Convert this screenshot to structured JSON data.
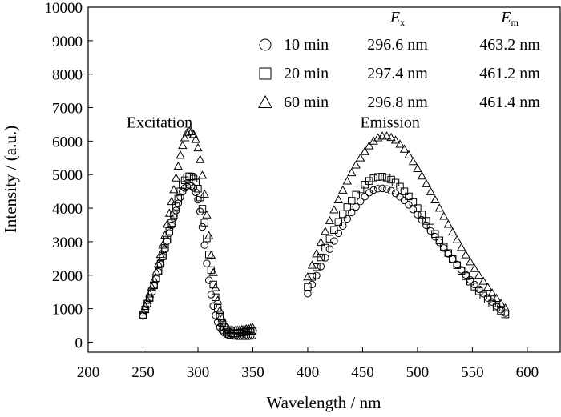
{
  "chart_data": {
    "type": "scatter",
    "xlabel": "Wavelength / nm",
    "ylabel": "Intensity / (a.u.)",
    "xlim": [
      200,
      630
    ],
    "ylim": [
      -300,
      10000
    ],
    "xticks": [
      200,
      250,
      300,
      350,
      400,
      450,
      500,
      550,
      600
    ],
    "yticks": [
      0,
      1000,
      2000,
      3000,
      4000,
      5000,
      6000,
      7000,
      8000,
      9000,
      10000
    ],
    "grid": false,
    "annotations": [
      {
        "text": "Excitation",
        "x": 265,
        "y": 6400
      },
      {
        "text": "Emission",
        "x": 475,
        "y": 6400
      }
    ],
    "legend": {
      "placement": "top-right",
      "header_ex": "E",
      "header_ex_sub": "x",
      "header_em": "E",
      "header_em_sub": "m",
      "entries": [
        {
          "marker": "circle",
          "label": "10 min",
          "ex": "296.6 nm",
          "em": "463.2 nm"
        },
        {
          "marker": "square",
          "label": "20 min",
          "ex": "297.4 nm",
          "em": "461.2 nm"
        },
        {
          "marker": "triangle",
          "label": "60 min",
          "ex": "296.8 nm",
          "em": "461.4 nm"
        }
      ]
    },
    "series": [
      {
        "marker": "circle",
        "excitation": {
          "x": [
            250,
            252,
            254,
            256,
            258,
            260,
            262,
            264,
            266,
            268,
            270,
            272,
            274,
            276,
            278,
            280,
            282,
            284,
            286,
            288,
            290,
            292,
            294,
            296,
            298,
            300,
            302,
            304,
            306,
            308,
            310,
            312,
            314,
            316,
            318,
            320,
            322,
            324,
            326,
            328,
            330,
            332,
            334,
            336,
            338,
            340,
            342,
            344,
            346,
            348,
            350
          ],
          "y": [
            780,
            950,
            1120,
            1300,
            1490,
            1690,
            1890,
            2100,
            2320,
            2550,
            2780,
            3020,
            3260,
            3490,
            3710,
            3930,
            4140,
            4330,
            4490,
            4600,
            4660,
            4680,
            4660,
            4600,
            4470,
            4250,
            3900,
            3440,
            2900,
            2350,
            1850,
            1420,
            1080,
            800,
            600,
            450,
            350,
            280,
            240,
            210,
            200,
            190,
            185,
            180,
            180,
            180,
            180,
            180,
            180,
            185,
            190
          ]
        },
        "emission": {
          "x": [
            400,
            404,
            408,
            412,
            416,
            420,
            424,
            428,
            432,
            436,
            440,
            444,
            448,
            452,
            456,
            460,
            464,
            468,
            472,
            476,
            480,
            484,
            488,
            492,
            496,
            500,
            504,
            508,
            512,
            516,
            520,
            524,
            528,
            532,
            536,
            540,
            544,
            548,
            552,
            556,
            560,
            564,
            568,
            572,
            576,
            580
          ],
          "y": [
            1450,
            1720,
            1990,
            2260,
            2520,
            2780,
            3020,
            3250,
            3470,
            3680,
            3870,
            4040,
            4200,
            4340,
            4460,
            4540,
            4580,
            4590,
            4570,
            4520,
            4440,
            4340,
            4230,
            4100,
            3960,
            3810,
            3650,
            3490,
            3320,
            3150,
            2980,
            2810,
            2640,
            2480,
            2320,
            2160,
            2010,
            1860,
            1720,
            1580,
            1450,
            1320,
            1200,
            1080,
            970,
            870
          ]
        }
      },
      {
        "marker": "square",
        "excitation": {
          "x": [
            250,
            252,
            254,
            256,
            258,
            260,
            262,
            264,
            266,
            268,
            270,
            272,
            274,
            276,
            278,
            280,
            282,
            284,
            286,
            288,
            290,
            292,
            294,
            296,
            298,
            300,
            302,
            304,
            306,
            308,
            310,
            312,
            314,
            316,
            318,
            320,
            322,
            324,
            326,
            328,
            330,
            332,
            334,
            336,
            338,
            340,
            342,
            344,
            346,
            348,
            350
          ],
          "y": [
            820,
            980,
            1150,
            1320,
            1510,
            1700,
            1910,
            2120,
            2340,
            2570,
            2810,
            3060,
            3310,
            3560,
            3810,
            4050,
            4280,
            4500,
            4690,
            4830,
            4920,
            4950,
            4940,
            4880,
            4760,
            4580,
            4320,
            3980,
            3570,
            3100,
            2620,
            2150,
            1720,
            1340,
            1020,
            770,
            580,
            440,
            350,
            300,
            270,
            260,
            260,
            270,
            280,
            290,
            300,
            310,
            320,
            330,
            340
          ]
        },
        "emission": {
          "x": [
            400,
            404,
            408,
            412,
            416,
            420,
            424,
            428,
            432,
            436,
            440,
            444,
            448,
            452,
            456,
            460,
            464,
            468,
            472,
            476,
            480,
            484,
            488,
            492,
            496,
            500,
            504,
            508,
            512,
            516,
            520,
            524,
            528,
            532,
            536,
            540,
            544,
            548,
            552,
            556,
            560,
            564,
            568,
            572,
            576,
            580
          ],
          "y": [
            1650,
            1950,
            2240,
            2530,
            2820,
            3090,
            3350,
            3590,
            3820,
            4030,
            4220,
            4400,
            4560,
            4700,
            4810,
            4890,
            4930,
            4940,
            4910,
            4850,
            4760,
            4640,
            4500,
            4350,
            4180,
            4000,
            3810,
            3620,
            3420,
            3230,
            3040,
            2850,
            2660,
            2480,
            2300,
            2130,
            1970,
            1810,
            1660,
            1520,
            1390,
            1270,
            1150,
            1040,
            930,
            830
          ]
        }
      },
      {
        "marker": "triangle",
        "excitation": {
          "x": [
            250,
            252,
            254,
            256,
            258,
            260,
            262,
            264,
            266,
            268,
            270,
            272,
            274,
            276,
            278,
            280,
            282,
            284,
            286,
            288,
            290,
            292,
            294,
            296,
            298,
            300,
            302,
            304,
            306,
            308,
            310,
            312,
            314,
            316,
            318,
            320,
            322,
            324,
            326,
            328,
            330,
            332,
            334,
            336,
            338,
            340,
            342,
            344,
            346,
            348,
            350
          ],
          "y": [
            900,
            1070,
            1250,
            1440,
            1650,
            1870,
            2100,
            2350,
            2620,
            2900,
            3200,
            3520,
            3850,
            4200,
            4550,
            4900,
            5250,
            5580,
            5870,
            6100,
            6250,
            6300,
            6280,
            6200,
            6050,
            5800,
            5450,
            4980,
            4420,
            3800,
            3180,
            2600,
            2080,
            1630,
            1250,
            950,
            720,
            560,
            450,
            390,
            360,
            350,
            350,
            360,
            370,
            380,
            390,
            400,
            410,
            420,
            430
          ]
        },
        "emission": {
          "x": [
            400,
            404,
            408,
            412,
            416,
            420,
            424,
            428,
            432,
            436,
            440,
            444,
            448,
            452,
            456,
            460,
            464,
            468,
            472,
            476,
            480,
            484,
            488,
            492,
            496,
            500,
            504,
            508,
            512,
            516,
            520,
            524,
            528,
            532,
            536,
            540,
            544,
            548,
            552,
            556,
            560,
            564,
            568,
            572,
            576,
            580
          ],
          "y": [
            1950,
            2300,
            2640,
            2980,
            3310,
            3630,
            3950,
            4250,
            4540,
            4810,
            5060,
            5290,
            5500,
            5690,
            5860,
            6000,
            6100,
            6150,
            6150,
            6110,
            6030,
            5910,
            5760,
            5590,
            5390,
            5180,
            4960,
            4730,
            4490,
            4250,
            4000,
            3760,
            3520,
            3290,
            3060,
            2830,
            2610,
            2400,
            2200,
            2000,
            1820,
            1640,
            1470,
            1310,
            1160,
            1020
          ]
        }
      }
    ]
  }
}
